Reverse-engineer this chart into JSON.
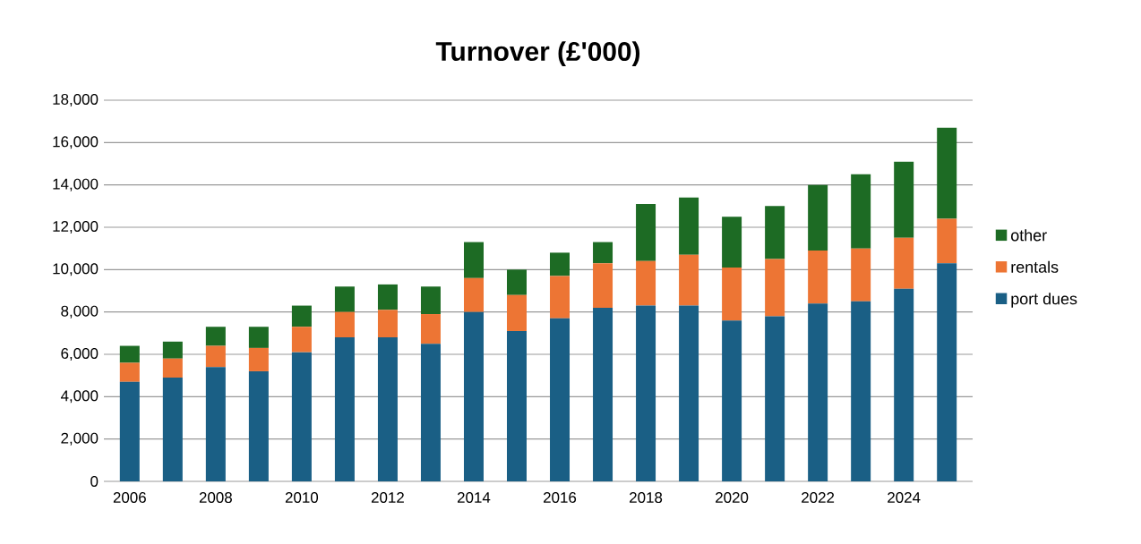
{
  "chart_data": {
    "type": "bar",
    "title": "Turnover (£'000)",
    "stacked": true,
    "categories": [
      "2006",
      null,
      "2008",
      null,
      "2010",
      null,
      "2012",
      null,
      "2014",
      null,
      "2016",
      null,
      "2018",
      null,
      "2020",
      null,
      "2022",
      null,
      "2024",
      null
    ],
    "series": [
      {
        "name": "port dues",
        "color": "#1a5f85",
        "values": [
          4700,
          4900,
          5400,
          5200,
          6100,
          6800,
          6800,
          6500,
          8000,
          7100,
          7700,
          8200,
          8300,
          8300,
          7600,
          7800,
          8400,
          8500,
          9100,
          10300
        ]
      },
      {
        "name": "rentals",
        "color": "#ed7534",
        "values": [
          900,
          900,
          1000,
          1100,
          1200,
          1200,
          1300,
          1400,
          1600,
          1700,
          2000,
          2100,
          2100,
          2400,
          2500,
          2700,
          2500,
          2500,
          2400,
          2100
        ]
      },
      {
        "name": "other",
        "color": "#1d6b24",
        "values": [
          800,
          800,
          900,
          1000,
          1000,
          1200,
          1200,
          1300,
          1700,
          1200,
          1100,
          1000,
          2700,
          2700,
          2400,
          2500,
          3100,
          3500,
          3600,
          4300
        ]
      }
    ],
    "ylim": [
      0,
      18000
    ],
    "yticks": [
      {
        "value": 0,
        "label": "0"
      },
      {
        "value": 2000,
        "label": "2,000"
      },
      {
        "value": 4000,
        "label": "4,000"
      },
      {
        "value": 6000,
        "label": "6,000"
      },
      {
        "value": 8000,
        "label": "8,000"
      },
      {
        "value": 10000,
        "label": "10,000"
      },
      {
        "value": 12000,
        "label": "12,000"
      },
      {
        "value": 14000,
        "label": "14,000"
      },
      {
        "value": 16000,
        "label": "16,000"
      },
      {
        "value": 18000,
        "label": "18,000"
      }
    ],
    "grid": "y",
    "legend": "right"
  }
}
